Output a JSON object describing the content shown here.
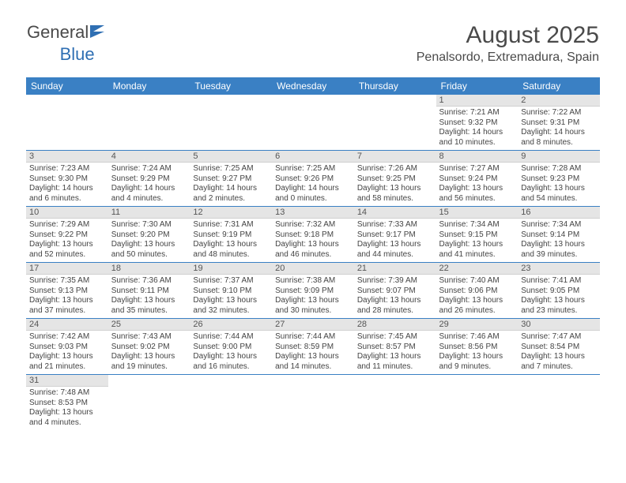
{
  "brand": {
    "general": "General",
    "blue": "Blue"
  },
  "title": {
    "month": "August 2025",
    "location": "Penalsordo, Extremadura, Spain"
  },
  "colors": {
    "header_blue": "#3a80c4",
    "row_divider": "#3a80c4",
    "daynum_bg": "#e5e5e5",
    "text": "#444444",
    "logo_blue": "#2f6fb3"
  },
  "dow": [
    "Sunday",
    "Monday",
    "Tuesday",
    "Wednesday",
    "Thursday",
    "Friday",
    "Saturday"
  ],
  "weeks": [
    [
      null,
      null,
      null,
      null,
      null,
      {
        "n": "1",
        "sr": "Sunrise: 7:21 AM",
        "ss": "Sunset: 9:32 PM",
        "dl1": "Daylight: 14 hours",
        "dl2": "and 10 minutes."
      },
      {
        "n": "2",
        "sr": "Sunrise: 7:22 AM",
        "ss": "Sunset: 9:31 PM",
        "dl1": "Daylight: 14 hours",
        "dl2": "and 8 minutes."
      }
    ],
    [
      {
        "n": "3",
        "sr": "Sunrise: 7:23 AM",
        "ss": "Sunset: 9:30 PM",
        "dl1": "Daylight: 14 hours",
        "dl2": "and 6 minutes."
      },
      {
        "n": "4",
        "sr": "Sunrise: 7:24 AM",
        "ss": "Sunset: 9:29 PM",
        "dl1": "Daylight: 14 hours",
        "dl2": "and 4 minutes."
      },
      {
        "n": "5",
        "sr": "Sunrise: 7:25 AM",
        "ss": "Sunset: 9:27 PM",
        "dl1": "Daylight: 14 hours",
        "dl2": "and 2 minutes."
      },
      {
        "n": "6",
        "sr": "Sunrise: 7:25 AM",
        "ss": "Sunset: 9:26 PM",
        "dl1": "Daylight: 14 hours",
        "dl2": "and 0 minutes."
      },
      {
        "n": "7",
        "sr": "Sunrise: 7:26 AM",
        "ss": "Sunset: 9:25 PM",
        "dl1": "Daylight: 13 hours",
        "dl2": "and 58 minutes."
      },
      {
        "n": "8",
        "sr": "Sunrise: 7:27 AM",
        "ss": "Sunset: 9:24 PM",
        "dl1": "Daylight: 13 hours",
        "dl2": "and 56 minutes."
      },
      {
        "n": "9",
        "sr": "Sunrise: 7:28 AM",
        "ss": "Sunset: 9:23 PM",
        "dl1": "Daylight: 13 hours",
        "dl2": "and 54 minutes."
      }
    ],
    [
      {
        "n": "10",
        "sr": "Sunrise: 7:29 AM",
        "ss": "Sunset: 9:22 PM",
        "dl1": "Daylight: 13 hours",
        "dl2": "and 52 minutes."
      },
      {
        "n": "11",
        "sr": "Sunrise: 7:30 AM",
        "ss": "Sunset: 9:20 PM",
        "dl1": "Daylight: 13 hours",
        "dl2": "and 50 minutes."
      },
      {
        "n": "12",
        "sr": "Sunrise: 7:31 AM",
        "ss": "Sunset: 9:19 PM",
        "dl1": "Daylight: 13 hours",
        "dl2": "and 48 minutes."
      },
      {
        "n": "13",
        "sr": "Sunrise: 7:32 AM",
        "ss": "Sunset: 9:18 PM",
        "dl1": "Daylight: 13 hours",
        "dl2": "and 46 minutes."
      },
      {
        "n": "14",
        "sr": "Sunrise: 7:33 AM",
        "ss": "Sunset: 9:17 PM",
        "dl1": "Daylight: 13 hours",
        "dl2": "and 44 minutes."
      },
      {
        "n": "15",
        "sr": "Sunrise: 7:34 AM",
        "ss": "Sunset: 9:15 PM",
        "dl1": "Daylight: 13 hours",
        "dl2": "and 41 minutes."
      },
      {
        "n": "16",
        "sr": "Sunrise: 7:34 AM",
        "ss": "Sunset: 9:14 PM",
        "dl1": "Daylight: 13 hours",
        "dl2": "and 39 minutes."
      }
    ],
    [
      {
        "n": "17",
        "sr": "Sunrise: 7:35 AM",
        "ss": "Sunset: 9:13 PM",
        "dl1": "Daylight: 13 hours",
        "dl2": "and 37 minutes."
      },
      {
        "n": "18",
        "sr": "Sunrise: 7:36 AM",
        "ss": "Sunset: 9:11 PM",
        "dl1": "Daylight: 13 hours",
        "dl2": "and 35 minutes."
      },
      {
        "n": "19",
        "sr": "Sunrise: 7:37 AM",
        "ss": "Sunset: 9:10 PM",
        "dl1": "Daylight: 13 hours",
        "dl2": "and 32 minutes."
      },
      {
        "n": "20",
        "sr": "Sunrise: 7:38 AM",
        "ss": "Sunset: 9:09 PM",
        "dl1": "Daylight: 13 hours",
        "dl2": "and 30 minutes."
      },
      {
        "n": "21",
        "sr": "Sunrise: 7:39 AM",
        "ss": "Sunset: 9:07 PM",
        "dl1": "Daylight: 13 hours",
        "dl2": "and 28 minutes."
      },
      {
        "n": "22",
        "sr": "Sunrise: 7:40 AM",
        "ss": "Sunset: 9:06 PM",
        "dl1": "Daylight: 13 hours",
        "dl2": "and 26 minutes."
      },
      {
        "n": "23",
        "sr": "Sunrise: 7:41 AM",
        "ss": "Sunset: 9:05 PM",
        "dl1": "Daylight: 13 hours",
        "dl2": "and 23 minutes."
      }
    ],
    [
      {
        "n": "24",
        "sr": "Sunrise: 7:42 AM",
        "ss": "Sunset: 9:03 PM",
        "dl1": "Daylight: 13 hours",
        "dl2": "and 21 minutes."
      },
      {
        "n": "25",
        "sr": "Sunrise: 7:43 AM",
        "ss": "Sunset: 9:02 PM",
        "dl1": "Daylight: 13 hours",
        "dl2": "and 19 minutes."
      },
      {
        "n": "26",
        "sr": "Sunrise: 7:44 AM",
        "ss": "Sunset: 9:00 PM",
        "dl1": "Daylight: 13 hours",
        "dl2": "and 16 minutes."
      },
      {
        "n": "27",
        "sr": "Sunrise: 7:44 AM",
        "ss": "Sunset: 8:59 PM",
        "dl1": "Daylight: 13 hours",
        "dl2": "and 14 minutes."
      },
      {
        "n": "28",
        "sr": "Sunrise: 7:45 AM",
        "ss": "Sunset: 8:57 PM",
        "dl1": "Daylight: 13 hours",
        "dl2": "and 11 minutes."
      },
      {
        "n": "29",
        "sr": "Sunrise: 7:46 AM",
        "ss": "Sunset: 8:56 PM",
        "dl1": "Daylight: 13 hours",
        "dl2": "and 9 minutes."
      },
      {
        "n": "30",
        "sr": "Sunrise: 7:47 AM",
        "ss": "Sunset: 8:54 PM",
        "dl1": "Daylight: 13 hours",
        "dl2": "and 7 minutes."
      }
    ],
    [
      {
        "n": "31",
        "sr": "Sunrise: 7:48 AM",
        "ss": "Sunset: 8:53 PM",
        "dl1": "Daylight: 13 hours",
        "dl2": "and 4 minutes."
      },
      null,
      null,
      null,
      null,
      null,
      null
    ]
  ]
}
